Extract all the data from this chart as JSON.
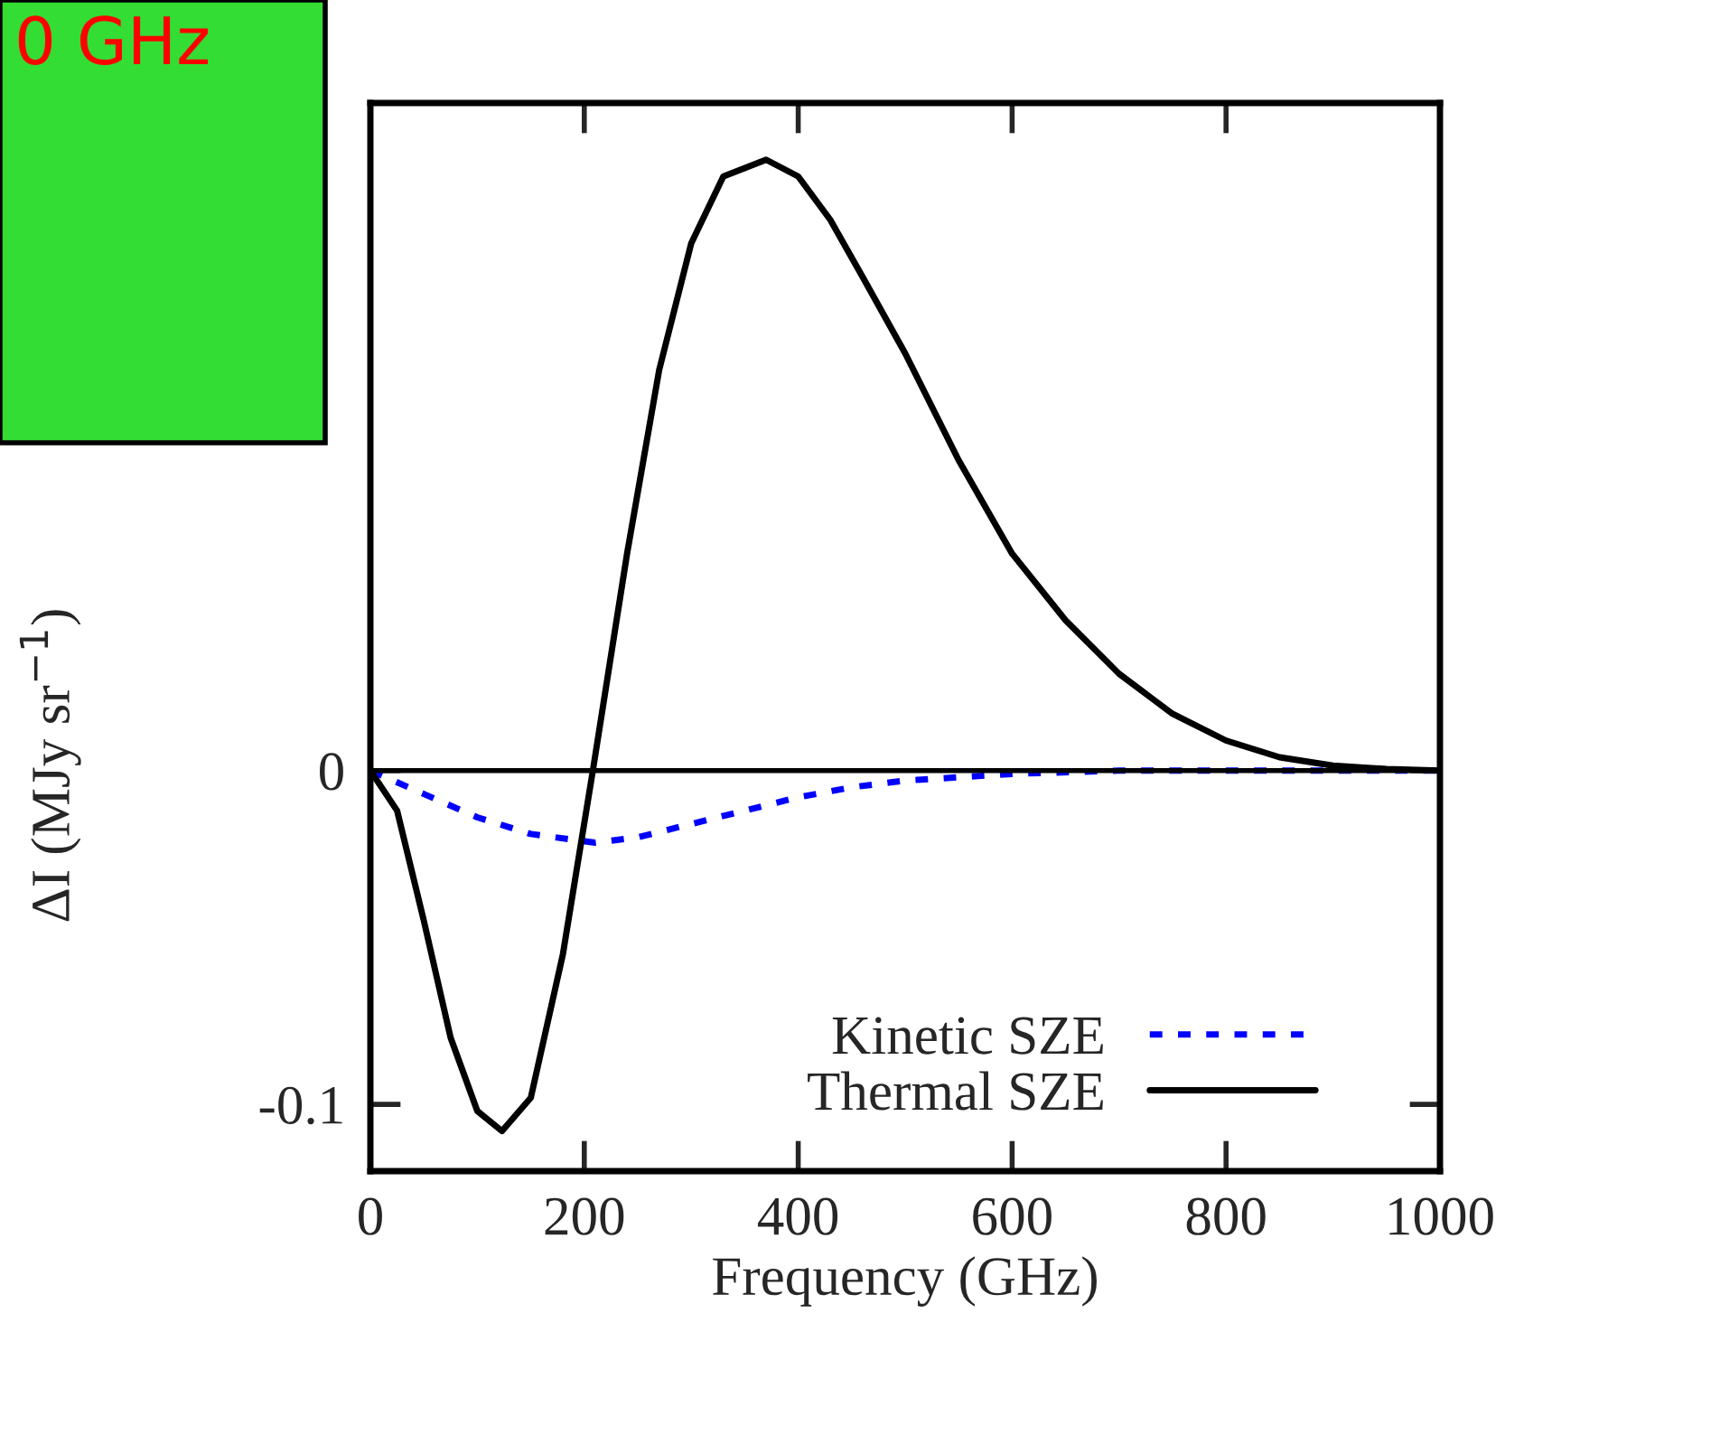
{
  "chart_data": {
    "type": "line",
    "xlabel": "Frequency (GHz)",
    "ylabel": "ΔI (MJy sr$^{−1}$)",
    "annotations": [
      "0 GHz"
    ],
    "xlim": [
      0,
      1000
    ],
    "xticks": [
      0,
      200,
      400,
      600,
      800,
      1000
    ],
    "ylim": [
      -0.12,
      0.2
    ],
    "yticks": [
      -0.1,
      0
    ],
    "ref_lines": [
      {
        "axis": "y",
        "value": 0,
        "color": "#000000"
      }
    ],
    "legend": "bottom right",
    "grid": false,
    "series": [
      {
        "name": "Kinetic SZE",
        "color": "#0000ff",
        "line_style": "dashed",
        "x": [
          0,
          50,
          100,
          150,
          210,
          250,
          300,
          350,
          400,
          450,
          500,
          600,
          700,
          1000
        ],
        "values": [
          0,
          -0.007,
          -0.014,
          -0.019,
          -0.0216,
          -0.02,
          -0.016,
          -0.012,
          -0.008,
          -0.005,
          -0.003,
          -0.001,
          0,
          0
        ]
      },
      {
        "name": "Thermal SZE",
        "color": "#000000",
        "line_style": "solid",
        "x": [
          0,
          25,
          50,
          75,
          100,
          123,
          150,
          180,
          208,
          240,
          270,
          300,
          330,
          370,
          400,
          430,
          460,
          500,
          550,
          600,
          650,
          700,
          750,
          800,
          850,
          900,
          950,
          1000
        ],
        "values": [
          0,
          -0.012,
          -0.045,
          -0.08,
          -0.102,
          -0.108,
          -0.098,
          -0.055,
          0,
          0.065,
          0.12,
          0.158,
          0.178,
          0.183,
          0.178,
          0.165,
          0.148,
          0.125,
          0.093,
          0.065,
          0.045,
          0.029,
          0.017,
          0.009,
          0.004,
          0.0015,
          0.0005,
          0
        ]
      }
    ]
  }
}
